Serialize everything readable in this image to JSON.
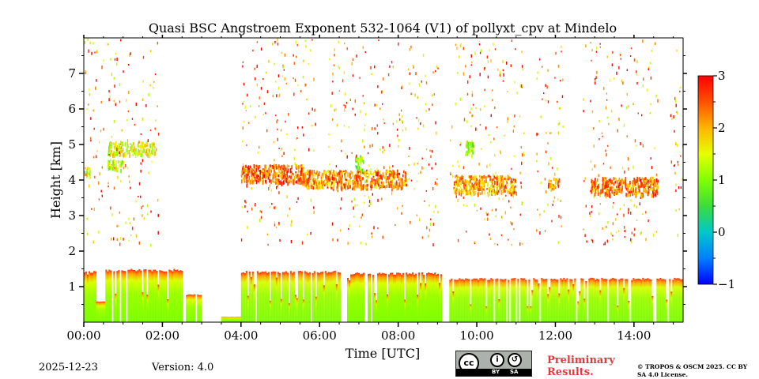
{
  "chart_data": {
    "type": "heatmap",
    "title": "Quasi BSC Angstroem Exponent 532-1064 (V1) of pollyxt_cpv at Mindelo",
    "xlabel": "Time [UTC]",
    "ylabel": "Height [km]",
    "x_unit": "hours UTC",
    "xlim": [
      0,
      15.25
    ],
    "ylim": [
      0,
      8
    ],
    "x_tick_labels": [
      "00:00",
      "02:00",
      "04:00",
      "06:00",
      "08:00",
      "10:00",
      "12:00",
      "14:00"
    ],
    "x_tick_values": [
      0,
      2,
      4,
      6,
      8,
      10,
      12,
      14
    ],
    "y_tick_labels": [
      "1",
      "2",
      "3",
      "4",
      "5",
      "6",
      "7"
    ],
    "y_tick_values": [
      1,
      2,
      3,
      4,
      5,
      6,
      7
    ],
    "colorbar": {
      "min": -1,
      "max": 3,
      "tick_values": [
        3,
        2,
        1,
        0,
        -1
      ],
      "tick_labels": [
        "3",
        "2",
        "1",
        "0",
        "−1"
      ],
      "colormap": "jet"
    },
    "boundary_layer": {
      "description_value_range": [
        0.8,
        3
      ],
      "top_height_km": 1.4,
      "segments": [
        [
          0.0,
          0.3,
          1.45
        ],
        [
          0.3,
          0.55,
          0.6
        ],
        [
          0.55,
          2.5,
          1.5
        ],
        [
          2.6,
          3.0,
          0.8
        ],
        [
          3.5,
          4.0,
          0.15
        ],
        [
          4.0,
          6.5,
          1.45
        ],
        [
          6.7,
          9.1,
          1.4
        ],
        [
          9.3,
          15.25,
          1.25
        ]
      ]
    },
    "aerosol_layers": [
      {
        "t_start": 0.0,
        "t_end": 0.15,
        "z_low": 4.1,
        "z_high": 4.4,
        "value": 1.3
      },
      {
        "t_start": 0.6,
        "t_end": 1.8,
        "z_low": 4.75,
        "z_high": 5.1,
        "value": 1.5
      },
      {
        "t_start": 0.6,
        "t_end": 1.0,
        "z_low": 4.3,
        "z_high": 4.6,
        "value": 1.4
      },
      {
        "t_start": 4.0,
        "t_end": 5.6,
        "z_low": 3.95,
        "z_high": 4.45,
        "value": 2.4
      },
      {
        "t_start": 5.6,
        "t_end": 8.2,
        "z_low": 3.8,
        "z_high": 4.3,
        "value": 2.2
      },
      {
        "t_start": 6.9,
        "t_end": 7.1,
        "z_low": 4.3,
        "z_high": 4.7,
        "value": 1.0
      },
      {
        "t_start": 9.4,
        "t_end": 11.0,
        "z_low": 3.65,
        "z_high": 4.15,
        "value": 2.1
      },
      {
        "t_start": 9.7,
        "t_end": 9.9,
        "z_low": 4.7,
        "z_high": 5.2,
        "value": 1.2
      },
      {
        "t_start": 11.8,
        "t_end": 12.1,
        "z_low": 3.8,
        "z_high": 4.1,
        "value": 2.2
      },
      {
        "t_start": 12.9,
        "t_end": 14.6,
        "z_low": 3.6,
        "z_high": 4.1,
        "value": 2.3
      }
    ]
  },
  "footer": {
    "date": "2025-12-23",
    "version": "Version: 4.0",
    "license_badge": {
      "cc": "cc",
      "by": "BY",
      "sa": "SA"
    },
    "preliminary": "Preliminary Results.",
    "copyright": "© TROPOS & OSCM 2025. CC BY SA 4.0 License."
  },
  "colors": {
    "text_red": "#e8383d",
    "badge_gray": "#aab2ab"
  }
}
